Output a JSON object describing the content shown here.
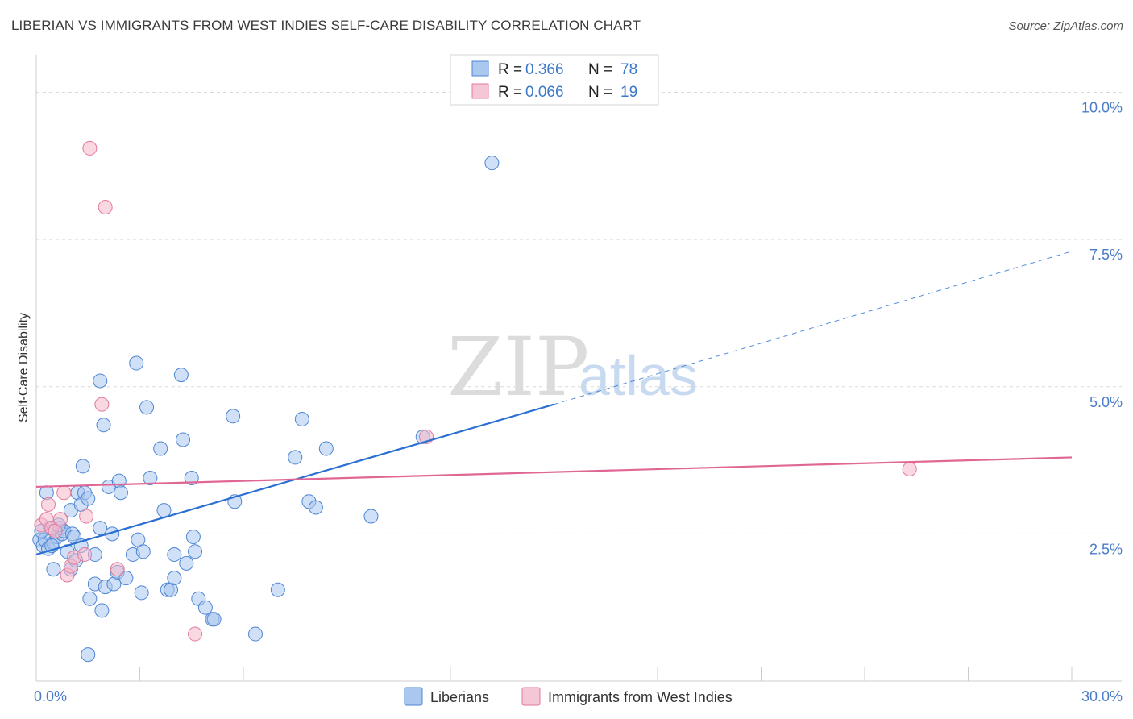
{
  "header": {
    "title": "LIBERIAN VS IMMIGRANTS FROM WEST INDIES SELF-CARE DISABILITY CORRELATION CHART",
    "source": "Source: ZipAtlas.com"
  },
  "watermark": {
    "zip": "ZIP",
    "atlas": "atlas"
  },
  "colors": {
    "blue_fill": "#a9c7ef",
    "blue_stroke": "#4f86d4",
    "blue_line": "#2a6fd1",
    "pink_fill": "#f5b8cb",
    "pink_stroke": "#e27a9c",
    "pink_line": "#e06794",
    "grid": "#d9d9d9",
    "tick_text": "#4a7cc9"
  },
  "chart_data": {
    "type": "scatter",
    "title": "LIBERIAN VS IMMIGRANTS FROM WEST INDIES SELF-CARE DISABILITY CORRELATION CHART",
    "xlabel": "",
    "ylabel": "Self-Care Disability",
    "xlim": [
      0,
      30
    ],
    "ylim": [
      0,
      10.5
    ],
    "x_tick_labels": [
      {
        "value": 0,
        "label": "0.0%"
      },
      {
        "value": 30,
        "label": "30.0%"
      }
    ],
    "y_tick_labels": [
      {
        "value": 2.5,
        "label": "2.5%"
      },
      {
        "value": 5.0,
        "label": "5.0%"
      },
      {
        "value": 7.5,
        "label": "7.5%"
      },
      {
        "value": 10.0,
        "label": "10.0%"
      }
    ],
    "legend": {
      "placement": "top-center",
      "entries": [
        {
          "r_label": "R =",
          "r_value": "0.366",
          "n_label": "N =",
          "n_value": "78"
        },
        {
          "r_label": "R =",
          "r_value": "0.066",
          "n_label": "N =",
          "n_value": "19"
        }
      ]
    },
    "bottom_legend": [
      "Liberians",
      "Immigrants from West Indies"
    ],
    "series": [
      {
        "name": "Liberians",
        "color": "blue",
        "trend": {
          "x0": 0,
          "y0": 2.15,
          "x1": 15,
          "y1": 4.7,
          "dashed_to_x": 30,
          "dashed_to_y": 7.3
        },
        "points": [
          [
            0.1,
            2.4
          ],
          [
            0.2,
            2.3
          ],
          [
            0.25,
            2.4
          ],
          [
            0.3,
            3.2
          ],
          [
            0.35,
            2.25
          ],
          [
            0.4,
            2.6
          ],
          [
            0.5,
            1.9
          ],
          [
            0.5,
            2.35
          ],
          [
            0.6,
            2.45
          ],
          [
            0.7,
            2.6
          ],
          [
            0.75,
            2.5
          ],
          [
            0.8,
            2.55
          ],
          [
            0.9,
            2.2
          ],
          [
            1.0,
            1.9
          ],
          [
            1.0,
            2.9
          ],
          [
            1.05,
            2.5
          ],
          [
            1.1,
            2.45
          ],
          [
            1.15,
            2.05
          ],
          [
            1.2,
            3.2
          ],
          [
            1.3,
            2.3
          ],
          [
            1.3,
            3.0
          ],
          [
            1.35,
            3.65
          ],
          [
            1.4,
            3.2
          ],
          [
            1.5,
            0.45
          ],
          [
            1.5,
            3.1
          ],
          [
            1.55,
            1.4
          ],
          [
            1.7,
            2.15
          ],
          [
            1.7,
            1.65
          ],
          [
            1.85,
            2.6
          ],
          [
            1.85,
            5.1
          ],
          [
            1.9,
            1.2
          ],
          [
            1.95,
            4.35
          ],
          [
            2.0,
            1.6
          ],
          [
            2.1,
            3.3
          ],
          [
            2.2,
            2.5
          ],
          [
            2.25,
            1.65
          ],
          [
            2.35,
            1.85
          ],
          [
            2.4,
            3.4
          ],
          [
            2.45,
            3.2
          ],
          [
            2.6,
            1.75
          ],
          [
            2.8,
            2.15
          ],
          [
            2.9,
            5.4
          ],
          [
            2.95,
            2.4
          ],
          [
            3.05,
            1.5
          ],
          [
            3.1,
            2.2
          ],
          [
            3.2,
            4.65
          ],
          [
            3.3,
            3.45
          ],
          [
            3.6,
            3.95
          ],
          [
            3.7,
            2.9
          ],
          [
            3.8,
            1.55
          ],
          [
            3.9,
            1.55
          ],
          [
            4.0,
            1.75
          ],
          [
            4.0,
            2.15
          ],
          [
            4.2,
            5.2
          ],
          [
            4.25,
            4.1
          ],
          [
            4.35,
            2.0
          ],
          [
            4.5,
            3.45
          ],
          [
            4.55,
            2.45
          ],
          [
            4.6,
            2.2
          ],
          [
            4.7,
            1.4
          ],
          [
            4.9,
            1.25
          ],
          [
            5.1,
            1.05
          ],
          [
            5.15,
            1.05
          ],
          [
            5.7,
            4.5
          ],
          [
            5.75,
            3.05
          ],
          [
            6.35,
            0.8
          ],
          [
            7.0,
            1.55
          ],
          [
            7.5,
            3.8
          ],
          [
            7.7,
            4.45
          ],
          [
            7.9,
            3.05
          ],
          [
            8.1,
            2.95
          ],
          [
            8.4,
            3.95
          ],
          [
            9.7,
            2.8
          ],
          [
            11.2,
            4.15
          ],
          [
            13.2,
            8.8
          ],
          [
            0.15,
            2.55
          ],
          [
            0.45,
            2.3
          ],
          [
            0.65,
            2.65
          ]
        ]
      },
      {
        "name": "Immigrants from West Indies",
        "color": "pink",
        "trend": {
          "x0": 0,
          "y0": 3.3,
          "x1": 30,
          "y1": 3.8
        },
        "points": [
          [
            0.15,
            2.65
          ],
          [
            0.3,
            2.75
          ],
          [
            0.35,
            3.0
          ],
          [
            0.45,
            2.6
          ],
          [
            0.55,
            2.55
          ],
          [
            0.7,
            2.75
          ],
          [
            0.8,
            3.2
          ],
          [
            0.9,
            1.8
          ],
          [
            1.0,
            1.95
          ],
          [
            1.1,
            2.1
          ],
          [
            1.4,
            2.15
          ],
          [
            1.45,
            2.8
          ],
          [
            1.55,
            9.05
          ],
          [
            1.9,
            4.7
          ],
          [
            2.0,
            8.05
          ],
          [
            2.35,
            1.9
          ],
          [
            4.6,
            0.8
          ],
          [
            11.3,
            4.15
          ],
          [
            25.3,
            3.6
          ]
        ]
      }
    ]
  }
}
